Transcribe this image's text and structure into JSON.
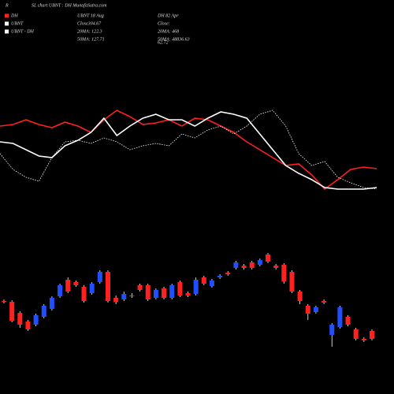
{
  "header": {
    "corner": "R",
    "title": "SL chart UBNT : DH MunafaSutra.com",
    "stats": [
      [
        "UBNT 18 Aug",
        "Close304.67",
        "20MA: 122.3",
        "50MA: 127.71"
      ],
      [
        "DH 82 Apr",
        "Close:",
        "20MA: 468",
        "50MA: 48836.63"
      ]
    ],
    "extra": "62.72"
  },
  "chart_data": [
    {
      "type": "line",
      "ylim": [
        40,
        170
      ],
      "series": [
        {
          "name": "DH",
          "color": "#ff2020",
          "style": "solid",
          "values": [
            140,
            142,
            148,
            142,
            138,
            145,
            140,
            132,
            148,
            160,
            152,
            142,
            144,
            148,
            140,
            150,
            148,
            140,
            132,
            120,
            110,
            100,
            90,
            92,
            78,
            60,
            72,
            85,
            88,
            86
          ]
        },
        {
          "name": "UBNT",
          "color": "#ffffff",
          "style": "solid",
          "values": [
            120,
            118,
            110,
            102,
            100,
            115,
            122,
            132,
            150,
            128,
            140,
            150,
            155,
            148,
            148,
            140,
            150,
            158,
            155,
            150,
            130,
            110,
            90,
            80,
            72,
            62,
            60,
            60,
            60,
            62
          ]
        },
        {
          "name": "UBNT - DH",
          "color": "#ffffff",
          "style": "dotted",
          "values": [
            105,
            85,
            75,
            70,
            100,
            120,
            122,
            118,
            125,
            120,
            110,
            115,
            118,
            115,
            130,
            125,
            135,
            140,
            130,
            140,
            155,
            160,
            140,
            105,
            90,
            95,
            75,
            68,
            62,
            60
          ]
        }
      ]
    },
    {
      "type": "candlestick",
      "ylim": [
        60,
        180
      ],
      "up_color": "#1f4fff",
      "down_color": "#ff2020",
      "open": [
        118,
        117,
        103,
        92,
        88,
        98,
        108,
        124,
        145,
        142,
        136,
        128,
        142,
        155,
        122,
        120,
        125,
        138,
        138,
        122,
        134,
        122,
        142,
        128,
        127,
        148,
        137,
        148,
        154,
        160,
        163,
        167,
        164,
        177,
        163,
        164,
        155,
        130,
        112,
        104,
        118,
        75,
        85,
        98,
        82,
        70,
        80
      ],
      "close": [
        117,
        93,
        88,
        82,
        100,
        112,
        122,
        138,
        130,
        138,
        118,
        140,
        155,
        118,
        117,
        127,
        124,
        132,
        120,
        132,
        122,
        138,
        125,
        125,
        145,
        140,
        144,
        150,
        152,
        167,
        160,
        160,
        170,
        168,
        160,
        143,
        130,
        118,
        102,
        110,
        116,
        88,
        110,
        88,
        70,
        68,
        70
      ],
      "high": [
        120,
        119,
        105,
        94,
        102,
        114,
        124,
        140,
        148,
        144,
        138,
        142,
        157,
        157,
        125,
        130,
        128,
        140,
        140,
        134,
        136,
        140,
        144,
        130,
        148,
        150,
        146,
        152,
        156,
        169,
        165,
        169,
        172,
        179,
        165,
        166,
        157,
        132,
        114,
        112,
        120,
        90,
        112,
        100,
        84,
        72,
        82
      ],
      "low": [
        115,
        91,
        84,
        80,
        86,
        96,
        106,
        122,
        128,
        136,
        116,
        126,
        140,
        116,
        114,
        118,
        122,
        130,
        118,
        120,
        120,
        120,
        123,
        123,
        125,
        138,
        135,
        146,
        150,
        158,
        158,
        158,
        162,
        166,
        158,
        140,
        128,
        114,
        94,
        102,
        114,
        60,
        83,
        86,
        68,
        66,
        68
      ]
    }
  ]
}
